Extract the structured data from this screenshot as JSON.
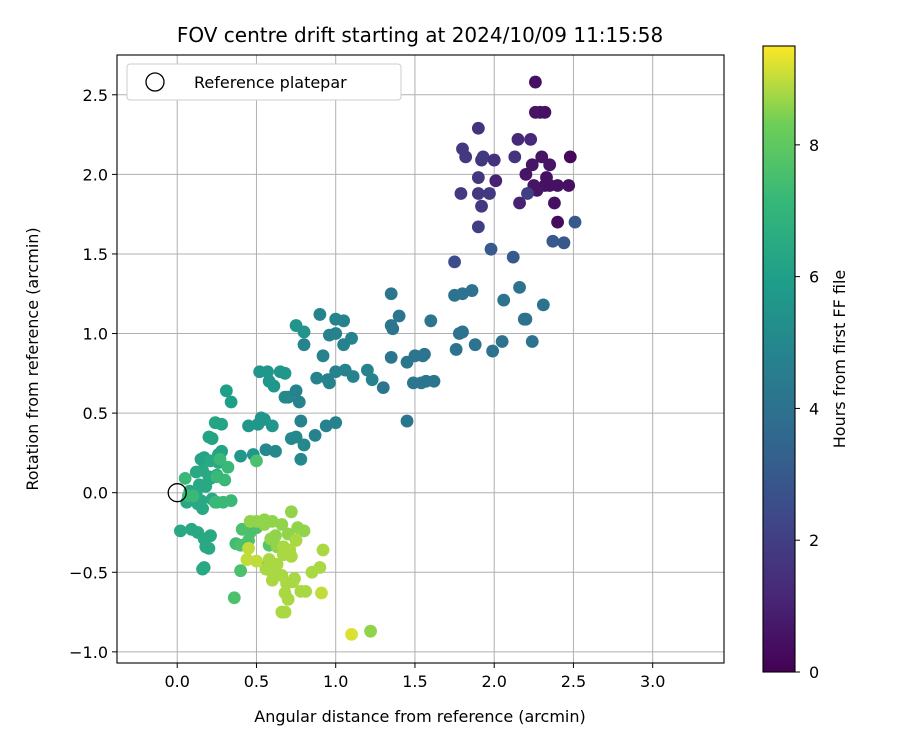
{
  "chart_data": {
    "type": "scatter",
    "title": "FOV centre drift starting at 2024/10/09 11:15:58",
    "xlabel": "Angular distance from reference (arcmin)",
    "ylabel": "Rotation from reference (arcmin)",
    "xlim": [
      -0.38,
      3.45
    ],
    "ylim": [
      -1.07,
      2.75
    ],
    "xticks": [
      0.0,
      0.5,
      1.0,
      1.5,
      2.0,
      2.5,
      3.0
    ],
    "xtick_labels": [
      "0.0",
      "0.5",
      "1.0",
      "1.5",
      "2.0",
      "2.5",
      "3.0"
    ],
    "yticks": [
      -1.0,
      -0.5,
      0.0,
      0.5,
      1.0,
      1.5,
      2.0,
      2.5
    ],
    "ytick_labels": [
      "−1.0",
      "−0.5",
      "0.0",
      "0.5",
      "1.0",
      "1.5",
      "2.0",
      "2.5"
    ],
    "grid": true,
    "legend": {
      "location": "top-left",
      "entries": [
        "Reference platepar"
      ]
    },
    "reference_point": {
      "x": 0.0,
      "y": 0.0
    },
    "colorbar": {
      "label": "Hours from first FF file",
      "colormap": "viridis",
      "range": [
        0,
        9.5
      ],
      "ticks": [
        0,
        2,
        4,
        6,
        8
      ],
      "tick_labels": [
        "0",
        "2",
        "4",
        "6",
        "8"
      ]
    },
    "series": [
      {
        "points": [
          [
            2.26,
            2.58,
            0.5
          ],
          [
            2.29,
            2.39,
            0.6
          ],
          [
            2.26,
            2.39,
            0.6
          ],
          [
            2.32,
            2.39,
            0.5
          ],
          [
            2.23,
            2.22,
            1.2
          ],
          [
            2.15,
            2.22,
            1.2
          ],
          [
            2.35,
            2.06,
            0.6
          ],
          [
            2.48,
            2.11,
            0.2
          ],
          [
            2.3,
            2.11,
            0.6
          ],
          [
            2.24,
            2.06,
            0.6
          ],
          [
            2.2,
            2.0,
            0.6
          ],
          [
            2.33,
            1.98,
            0.5
          ],
          [
            2.4,
            1.93,
            0.5
          ],
          [
            2.35,
            1.93,
            0.5
          ],
          [
            2.32,
            1.93,
            0.5
          ],
          [
            2.25,
            1.93,
            0.6
          ],
          [
            2.47,
            1.93,
            0.5
          ],
          [
            2.13,
            2.11,
            1.6
          ],
          [
            2.27,
            1.9,
            0.6
          ],
          [
            2.38,
            1.82,
            0.5
          ],
          [
            2.16,
            1.82,
            1.0
          ],
          [
            2.4,
            1.7,
            0.3
          ],
          [
            2.01,
            1.96,
            1.0
          ],
          [
            1.92,
            2.09,
            1.6
          ],
          [
            1.8,
            2.16,
            1.8
          ],
          [
            1.82,
            2.11,
            1.8
          ],
          [
            1.93,
            2.11,
            1.8
          ],
          [
            2.0,
            2.09,
            1.5
          ],
          [
            1.9,
            2.29,
            1.6
          ],
          [
            1.9,
            1.98,
            1.7
          ],
          [
            1.79,
            1.88,
            1.8
          ],
          [
            1.9,
            1.88,
            1.8
          ],
          [
            1.97,
            1.88,
            1.8
          ],
          [
            1.92,
            1.8,
            1.8
          ],
          [
            1.9,
            1.67,
            2.0
          ],
          [
            2.21,
            1.88,
            2.0
          ],
          [
            2.51,
            1.7,
            3.0
          ],
          [
            2.44,
            1.57,
            2.9
          ],
          [
            2.37,
            1.58,
            3.0
          ],
          [
            2.12,
            1.48,
            3.0
          ],
          [
            1.75,
            1.45,
            2.5
          ],
          [
            1.98,
            1.53,
            3.0
          ],
          [
            1.75,
            1.24,
            4.0
          ],
          [
            1.8,
            1.25,
            4.0
          ],
          [
            1.86,
            1.27,
            4.0
          ],
          [
            1.78,
            1.0,
            4.0
          ],
          [
            1.8,
            1.01,
            4.0
          ],
          [
            1.88,
            0.93,
            4.0
          ],
          [
            1.76,
            0.9,
            4.0
          ],
          [
            2.06,
            1.21,
            4.0
          ],
          [
            2.16,
            1.29,
            4.0
          ],
          [
            2.2,
            1.09,
            4.0
          ],
          [
            2.19,
            1.09,
            4.0
          ],
          [
            2.05,
            0.95,
            4.0
          ],
          [
            1.99,
            0.89,
            4.0
          ],
          [
            2.24,
            0.95,
            4.0
          ],
          [
            2.31,
            1.18,
            4.0
          ],
          [
            1.4,
            1.11,
            4.2
          ],
          [
            1.6,
            1.08,
            4.2
          ],
          [
            1.35,
            1.25,
            4.2
          ],
          [
            1.35,
            1.05,
            4.2
          ],
          [
            1.36,
            1.03,
            4.2
          ],
          [
            1.45,
            0.82,
            4.2
          ],
          [
            1.5,
            0.86,
            4.2
          ],
          [
            1.56,
            0.87,
            4.2
          ],
          [
            1.55,
            0.86,
            4.2
          ],
          [
            1.49,
            0.69,
            4.2
          ],
          [
            1.54,
            0.69,
            4.2
          ],
          [
            1.57,
            0.7,
            4.2
          ],
          [
            1.62,
            0.7,
            4.2
          ],
          [
            1.35,
            0.85,
            4.2
          ],
          [
            1.45,
            0.45,
            4.2
          ],
          [
            1.3,
            0.66,
            4.2
          ],
          [
            0.9,
            1.12,
            4.8
          ],
          [
            1.0,
            1.09,
            4.8
          ],
          [
            1.05,
            1.08,
            4.8
          ],
          [
            1.0,
            1.0,
            4.8
          ],
          [
            0.96,
            0.99,
            4.8
          ],
          [
            1.1,
            0.97,
            4.8
          ],
          [
            1.05,
            0.93,
            4.8
          ],
          [
            0.8,
            0.93,
            4.8
          ],
          [
            0.92,
            0.86,
            4.8
          ],
          [
            1.0,
            0.76,
            4.8
          ],
          [
            1.06,
            0.77,
            4.8
          ],
          [
            1.11,
            0.73,
            4.8
          ],
          [
            1.2,
            0.77,
            4.8
          ],
          [
            1.23,
            0.71,
            4.8
          ],
          [
            0.95,
            0.71,
            4.8
          ],
          [
            0.96,
            0.69,
            4.8
          ],
          [
            0.88,
            0.72,
            4.8
          ],
          [
            0.75,
            0.64,
            4.8
          ],
          [
            0.7,
            0.6,
            4.8
          ],
          [
            0.77,
            0.57,
            4.8
          ],
          [
            0.78,
            0.45,
            4.8
          ],
          [
            0.87,
            0.36,
            4.8
          ],
          [
            0.94,
            0.42,
            4.8
          ],
          [
            1.0,
            0.44,
            4.8
          ],
          [
            0.68,
            0.6,
            5.0
          ],
          [
            0.75,
            0.35,
            5.0
          ],
          [
            0.8,
            0.3,
            5.0
          ],
          [
            0.78,
            0.21,
            5.0
          ],
          [
            0.56,
            0.27,
            5.0
          ],
          [
            0.62,
            0.26,
            5.0
          ],
          [
            0.72,
            0.34,
            5.0
          ],
          [
            0.75,
            1.05,
            5.5
          ],
          [
            0.8,
            1.01,
            5.5
          ],
          [
            0.65,
            0.76,
            5.6
          ],
          [
            0.68,
            0.75,
            5.6
          ],
          [
            0.52,
            0.76,
            5.6
          ],
          [
            0.57,
            0.76,
            5.6
          ],
          [
            0.58,
            0.7,
            5.6
          ],
          [
            0.61,
            0.67,
            5.6
          ],
          [
            0.55,
            0.46,
            5.6
          ],
          [
            0.53,
            0.47,
            5.6
          ],
          [
            0.51,
            0.43,
            5.6
          ],
          [
            0.45,
            0.42,
            5.6
          ],
          [
            0.6,
            0.42,
            5.6
          ],
          [
            0.48,
            0.24,
            5.6
          ],
          [
            0.4,
            0.23,
            5.6
          ],
          [
            0.31,
            0.64,
            6.0
          ],
          [
            0.34,
            0.57,
            6.0
          ],
          [
            0.28,
            0.43,
            6.2
          ],
          [
            0.24,
            0.44,
            6.2
          ],
          [
            0.2,
            0.35,
            6.2
          ],
          [
            0.22,
            0.34,
            6.2
          ],
          [
            0.28,
            0.26,
            6.2
          ],
          [
            0.26,
            0.24,
            6.2
          ],
          [
            0.17,
            0.22,
            6.2
          ],
          [
            0.15,
            0.21,
            6.2
          ],
          [
            0.12,
            0.13,
            6.4
          ],
          [
            0.16,
            0.14,
            6.4
          ],
          [
            0.21,
            0.2,
            6.4
          ],
          [
            0.26,
            0.19,
            6.4
          ],
          [
            0.25,
            0.11,
            6.4
          ],
          [
            0.2,
            0.1,
            6.4
          ],
          [
            0.08,
            0.01,
            6.4
          ],
          [
            0.12,
            0.0,
            6.4
          ],
          [
            0.14,
            0.05,
            6.4
          ],
          [
            0.18,
            0.04,
            6.4
          ],
          [
            0.11,
            -0.04,
            6.4
          ],
          [
            0.15,
            -0.05,
            6.4
          ],
          [
            0.06,
            -0.06,
            6.4
          ],
          [
            0.13,
            -0.07,
            6.4
          ],
          [
            0.16,
            -0.1,
            6.4
          ],
          [
            0.22,
            -0.04,
            6.4
          ],
          [
            0.21,
            0.09,
            6.4
          ],
          [
            0.02,
            -0.24,
            6.4
          ],
          [
            0.09,
            -0.23,
            6.4
          ],
          [
            0.13,
            -0.25,
            6.4
          ],
          [
            0.17,
            -0.29,
            6.4
          ],
          [
            0.21,
            -0.27,
            6.4
          ],
          [
            0.18,
            -0.34,
            6.4
          ],
          [
            0.2,
            -0.35,
            6.4
          ],
          [
            0.16,
            -0.48,
            6.4
          ],
          [
            0.17,
            -0.47,
            6.4
          ],
          [
            0.05,
            0.09,
            7.2
          ],
          [
            0.07,
            -0.02,
            7.2
          ],
          [
            0.1,
            -0.02,
            7.2
          ],
          [
            0.25,
            -0.06,
            7.2
          ],
          [
            0.24,
            -0.06,
            7.2
          ],
          [
            0.29,
            -0.06,
            7.2
          ],
          [
            0.34,
            -0.05,
            7.2
          ],
          [
            0.3,
            0.08,
            7.2
          ],
          [
            0.32,
            0.16,
            7.2
          ],
          [
            0.27,
            0.21,
            7.2
          ],
          [
            0.25,
            0.1,
            7.2
          ],
          [
            0.5,
            0.2,
            7.6
          ],
          [
            0.37,
            -0.32,
            7.4
          ],
          [
            0.4,
            -0.33,
            7.6
          ],
          [
            0.45,
            -0.3,
            7.6
          ],
          [
            0.41,
            -0.23,
            7.6
          ],
          [
            0.46,
            -0.25,
            7.6
          ],
          [
            0.5,
            -0.22,
            7.6
          ],
          [
            0.36,
            -0.66,
            7.6
          ],
          [
            0.4,
            -0.49,
            7.6
          ],
          [
            0.58,
            -0.33,
            7.8
          ],
          [
            0.56,
            -0.46,
            7.8
          ],
          [
            0.46,
            -0.18,
            8.6
          ],
          [
            0.5,
            -0.18,
            8.6
          ],
          [
            0.55,
            -0.17,
            8.6
          ],
          [
            0.55,
            -0.2,
            8.6
          ],
          [
            0.6,
            -0.18,
            8.6
          ],
          [
            0.66,
            -0.2,
            8.6
          ],
          [
            0.72,
            -0.12,
            8.6
          ],
          [
            0.76,
            -0.22,
            8.6
          ],
          [
            0.8,
            -0.24,
            8.6
          ],
          [
            0.7,
            -0.26,
            8.6
          ],
          [
            0.62,
            -0.27,
            8.6
          ],
          [
            0.59,
            -0.29,
            8.6
          ],
          [
            0.63,
            -0.34,
            8.6
          ],
          [
            0.67,
            -0.34,
            8.8
          ],
          [
            0.71,
            -0.36,
            8.8
          ],
          [
            0.75,
            -0.3,
            8.8
          ],
          [
            0.72,
            -0.4,
            8.8
          ],
          [
            0.67,
            -0.39,
            8.8
          ],
          [
            0.58,
            -0.42,
            8.8
          ],
          [
            0.63,
            -0.45,
            8.8
          ],
          [
            0.59,
            -0.49,
            8.8
          ],
          [
            0.56,
            -0.48,
            8.8
          ],
          [
            0.66,
            -0.52,
            8.8
          ],
          [
            0.69,
            -0.57,
            8.8
          ],
          [
            0.74,
            -0.54,
            8.8
          ],
          [
            0.73,
            -0.56,
            8.8
          ],
          [
            0.6,
            -0.55,
            8.8
          ],
          [
            0.68,
            -0.63,
            8.8
          ],
          [
            0.66,
            -0.75,
            8.8
          ],
          [
            0.68,
            -0.75,
            8.8
          ],
          [
            0.7,
            -0.67,
            8.8
          ],
          [
            0.78,
            -0.62,
            8.8
          ],
          [
            0.81,
            -0.62,
            8.8
          ],
          [
            0.85,
            -0.5,
            8.8
          ],
          [
            0.9,
            -0.47,
            8.8
          ],
          [
            0.92,
            -0.36,
            8.8
          ],
          [
            0.91,
            -0.63,
            9.0
          ],
          [
            0.5,
            -0.43,
            9.0
          ],
          [
            0.45,
            -0.35,
            9.0
          ],
          [
            0.44,
            -0.42,
            9.0
          ],
          [
            1.1,
            -0.89,
            9.2
          ],
          [
            1.22,
            -0.87,
            8.6
          ]
        ]
      }
    ]
  }
}
